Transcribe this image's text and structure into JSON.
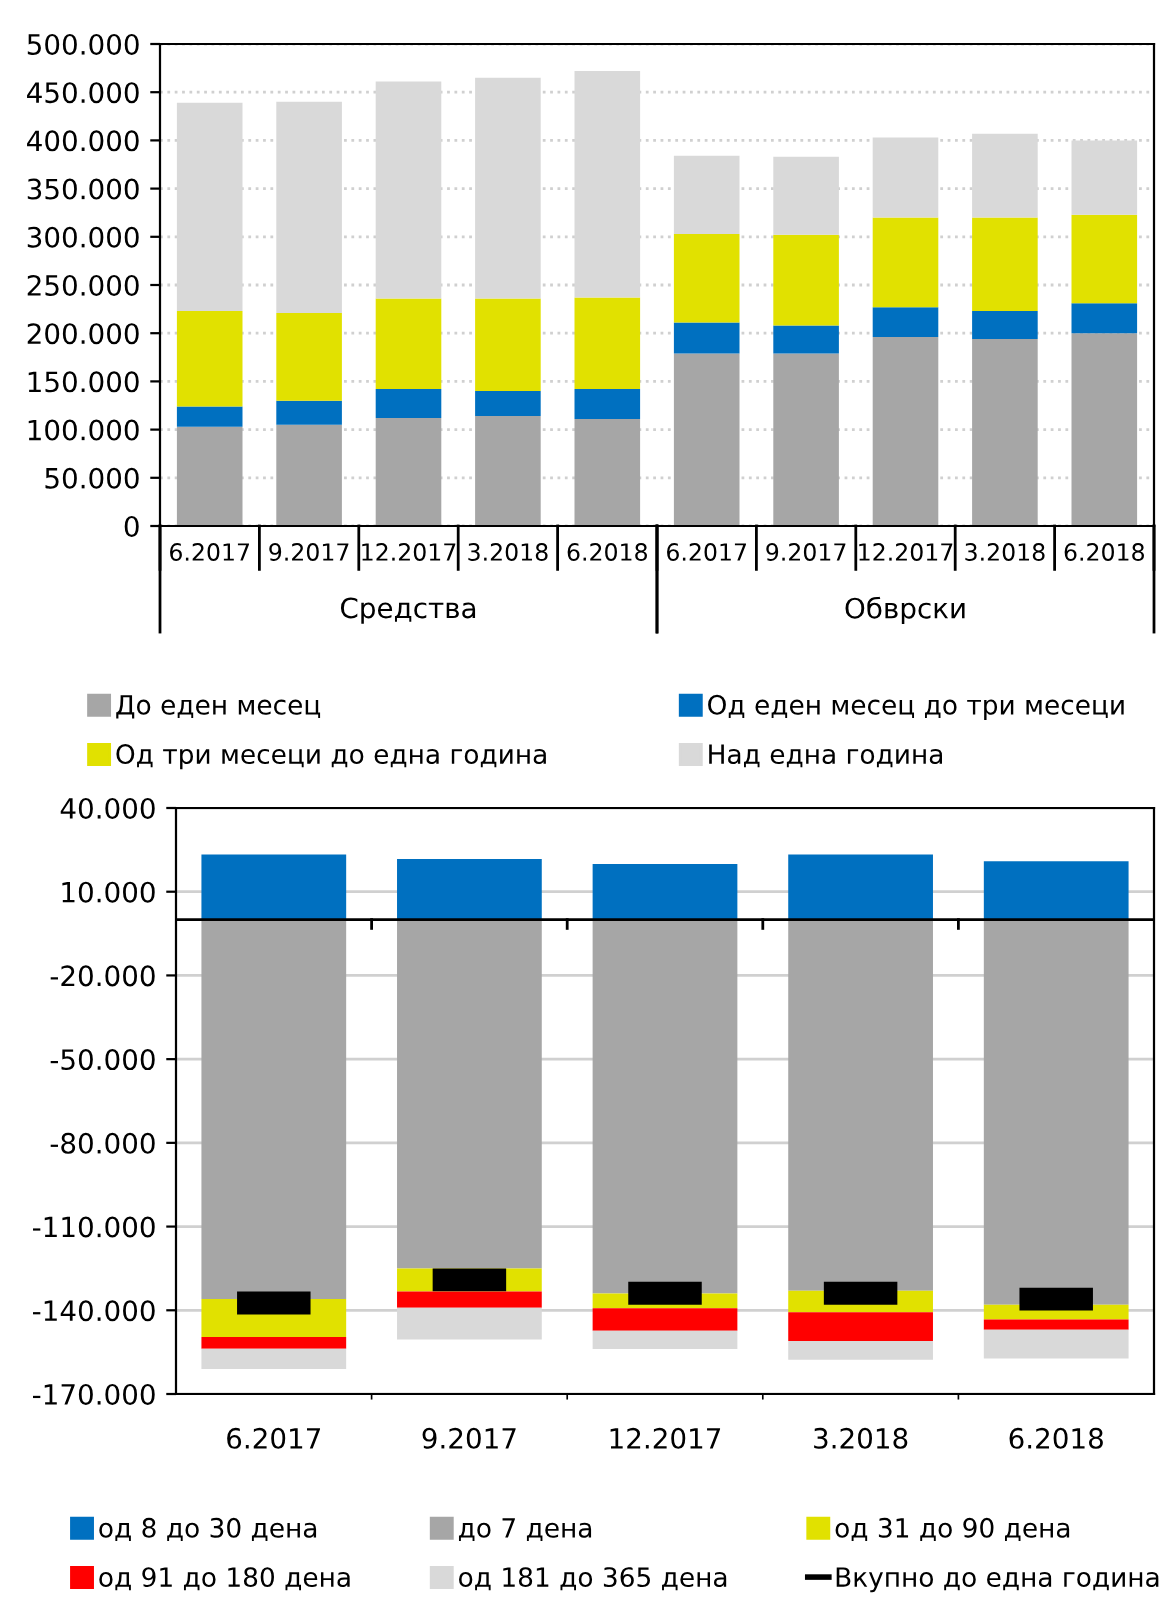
{
  "chart_data": [
    {
      "type": "bar",
      "stacked": true,
      "categories": [
        "6.2017",
        "9.2017",
        "12.2017",
        "3.2018",
        "6.2018",
        "6.2017",
        "9.2017",
        "12.2017",
        "3.2018",
        "6.2018"
      ],
      "annotations": [
        "Средства",
        "Обврски"
      ],
      "series": [
        {
          "name": "До еден месец",
          "color": "#a6a6a6",
          "values": [
            103000,
            105000,
            112000,
            114000,
            111000,
            179000,
            179000,
            196000,
            194000,
            200000
          ]
        },
        {
          "name": "Од еден месец до три месеци",
          "color": "#0070c0",
          "values": [
            21000,
            25000,
            30000,
            26000,
            31000,
            32000,
            29000,
            31000,
            29000,
            31000
          ]
        },
        {
          "name": "Од три месеци до една година",
          "color": "#e1e100",
          "values": [
            99000,
            91000,
            94000,
            96000,
            95000,
            92000,
            94000,
            93000,
            97000,
            92000
          ]
        },
        {
          "name": "Над една година",
          "color": "#d9d9d9",
          "values": [
            216000,
            219000,
            225000,
            229000,
            235000,
            81000,
            81000,
            83000,
            87000,
            77000
          ]
        }
      ],
      "ylim": [
        0,
        500000
      ],
      "yticks": [
        {
          "value": 0,
          "label": "0"
        },
        {
          "value": 50000,
          "label": "50.000"
        },
        {
          "value": 100000,
          "label": "100.000"
        },
        {
          "value": 150000,
          "label": "150.000"
        },
        {
          "value": 200000,
          "label": "200.000"
        },
        {
          "value": 250000,
          "label": "250.000"
        },
        {
          "value": 300000,
          "label": "300.000"
        },
        {
          "value": 350000,
          "label": "350.000"
        },
        {
          "value": 400000,
          "label": "400.000"
        },
        {
          "value": 450000,
          "label": "450.000"
        },
        {
          "value": 500000,
          "label": "500.000"
        }
      ],
      "grid": "y",
      "legend": "bottom"
    },
    {
      "type": "bar",
      "stacked": true,
      "categories": [
        "6.2017",
        "9.2017",
        "12.2017",
        "3.2018",
        "6.2018"
      ],
      "series": [
        {
          "name": "од 8 до 30 дена",
          "color": "#0070c0",
          "values": [
            23300,
            21700,
            19900,
            23300,
            20900
          ]
        },
        {
          "name": "до 7 дена",
          "color": "#a6a6a6",
          "values": [
            -136000,
            -125000,
            -134000,
            -133000,
            -138000
          ]
        },
        {
          "name": "од 31 до 90 дена",
          "color": "#e1e100",
          "values": [
            -13600,
            -8300,
            -5300,
            -7700,
            -5300
          ]
        },
        {
          "name": "од 91 до 180 дена",
          "color": "#ff0000",
          "values": [
            -4200,
            -5800,
            -8000,
            -10300,
            -3700
          ]
        },
        {
          "name": "од 181 до 365 дена",
          "color": "#d9d9d9",
          "values": [
            -7200,
            -11400,
            -6600,
            -6700,
            -10300
          ]
        },
        {
          "name": "Вкупно до една година",
          "type": "scatter",
          "color": "#000000",
          "x": [
            "6.2017",
            "9.2017",
            "12.2017",
            "3.2018",
            "6.2018"
          ],
          "values": [
            -137400,
            -129100,
            -133900,
            -133900,
            -136000
          ]
        }
      ],
      "ylim": [
        -170000,
        40000
      ],
      "yticks": [
        {
          "value": -170000,
          "label": "-170.000"
        },
        {
          "value": -140000,
          "label": "-140.000"
        },
        {
          "value": -110000,
          "label": "-110.000"
        },
        {
          "value": -80000,
          "label": "-80.000"
        },
        {
          "value": -50000,
          "label": "-50.000"
        },
        {
          "value": -20000,
          "label": "-20.000"
        },
        {
          "value": 10000,
          "label": "10.000"
        },
        {
          "value": 40000,
          "label": "40.000"
        }
      ],
      "grid": "y",
      "legend": "bottom"
    }
  ]
}
